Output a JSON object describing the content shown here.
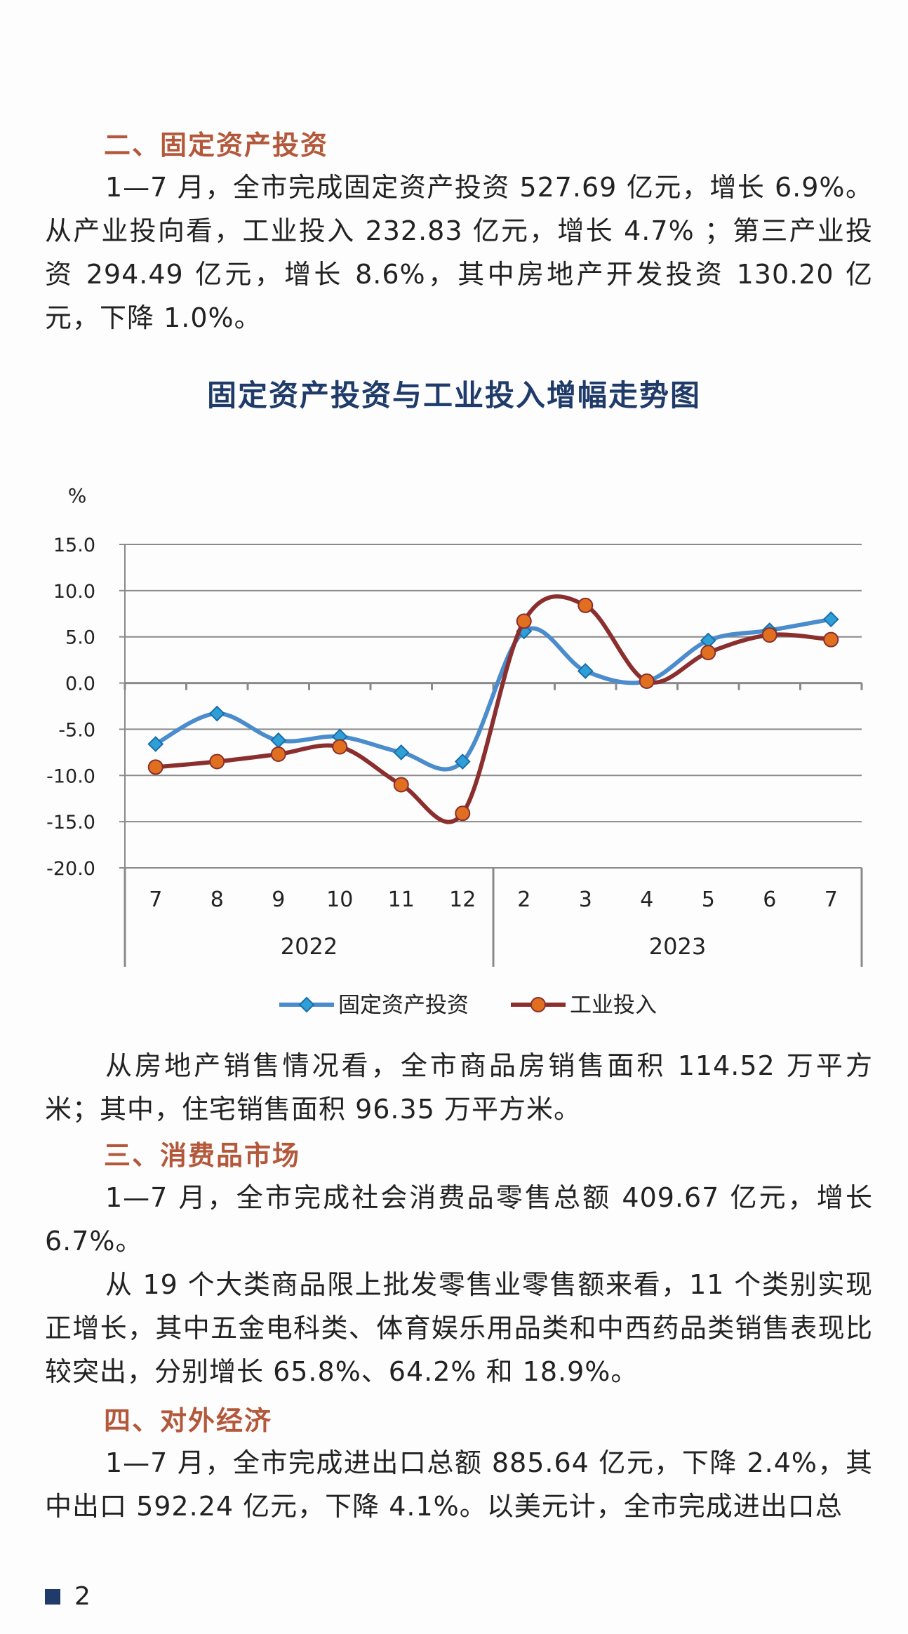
{
  "section2": {
    "heading": "二、固定资产投资",
    "paragraph": "1—7 月，全市完成固定资产投资 527.69 亿元，增长 6.9%。从产业投向看，工业投入 232.83 亿元，增长 4.7% ；第三产业投资 294.49 亿元，增长 8.6%，其中房地产开发投资 130.20 亿元，下降 1.0%。"
  },
  "chart_data": {
    "type": "line",
    "title": "固定资产投资与工业投入增幅走势图",
    "ylabel": "%",
    "ylim": [
      -20,
      15
    ],
    "yticks": [
      "15.0",
      "10.0",
      "5.0",
      "0.0",
      "-5.0",
      "-10.0",
      "-15.0",
      "-20.0"
    ],
    "ytick_values": [
      15,
      10,
      5,
      0,
      -5,
      -10,
      -15,
      -20
    ],
    "categories": [
      "7",
      "8",
      "9",
      "10",
      "11",
      "12",
      "2",
      "3",
      "4",
      "5",
      "6",
      "7"
    ],
    "year_groups": [
      {
        "label": "2022",
        "start": 0,
        "end": 5
      },
      {
        "label": "2023",
        "start": 6,
        "end": 11
      }
    ],
    "grid": true,
    "legend_position": "bottom",
    "series": [
      {
        "name": "固定资产投资",
        "color": "#4a8ccc",
        "marker": "diamond",
        "values": [
          -6.6,
          -3.3,
          -6.2,
          -5.8,
          -7.5,
          -8.5,
          5.6,
          1.3,
          0.2,
          4.6,
          5.7,
          6.9
        ]
      },
      {
        "name": "工业投入",
        "color": "#8b2e2e",
        "marker_color": "#e07020",
        "marker": "circle",
        "values": [
          -9.1,
          -8.5,
          -7.7,
          -6.9,
          -11.0,
          -14.1,
          6.7,
          8.4,
          0.2,
          3.3,
          5.2,
          4.7
        ]
      }
    ]
  },
  "para_after_chart": "从房地产销售情况看，全市商品房销售面积 114.52 万平方米；其中，住宅销售面积 96.35 万平方米。",
  "section3": {
    "heading": "三、消费品市场",
    "paragraph1": "1—7 月，全市完成社会消费品零售总额 409.67 亿元，增长 6.7%。",
    "paragraph2": "从 19 个大类商品限上批发零售业零售额来看，11 个类别实现正增长，其中五金电科类、体育娱乐用品类和中西药品类销售表现比较突出，分别增长 65.8%、64.2% 和 18.9%。"
  },
  "section4": {
    "heading": "四、对外经济",
    "paragraph": "1—7 月，全市完成进出口总额 885.64 亿元，下降 2.4%，其中出口 592.24 亿元，下降 4.1%。以美元计，全市完成进出口总"
  },
  "footer": {
    "page_number": "2"
  }
}
